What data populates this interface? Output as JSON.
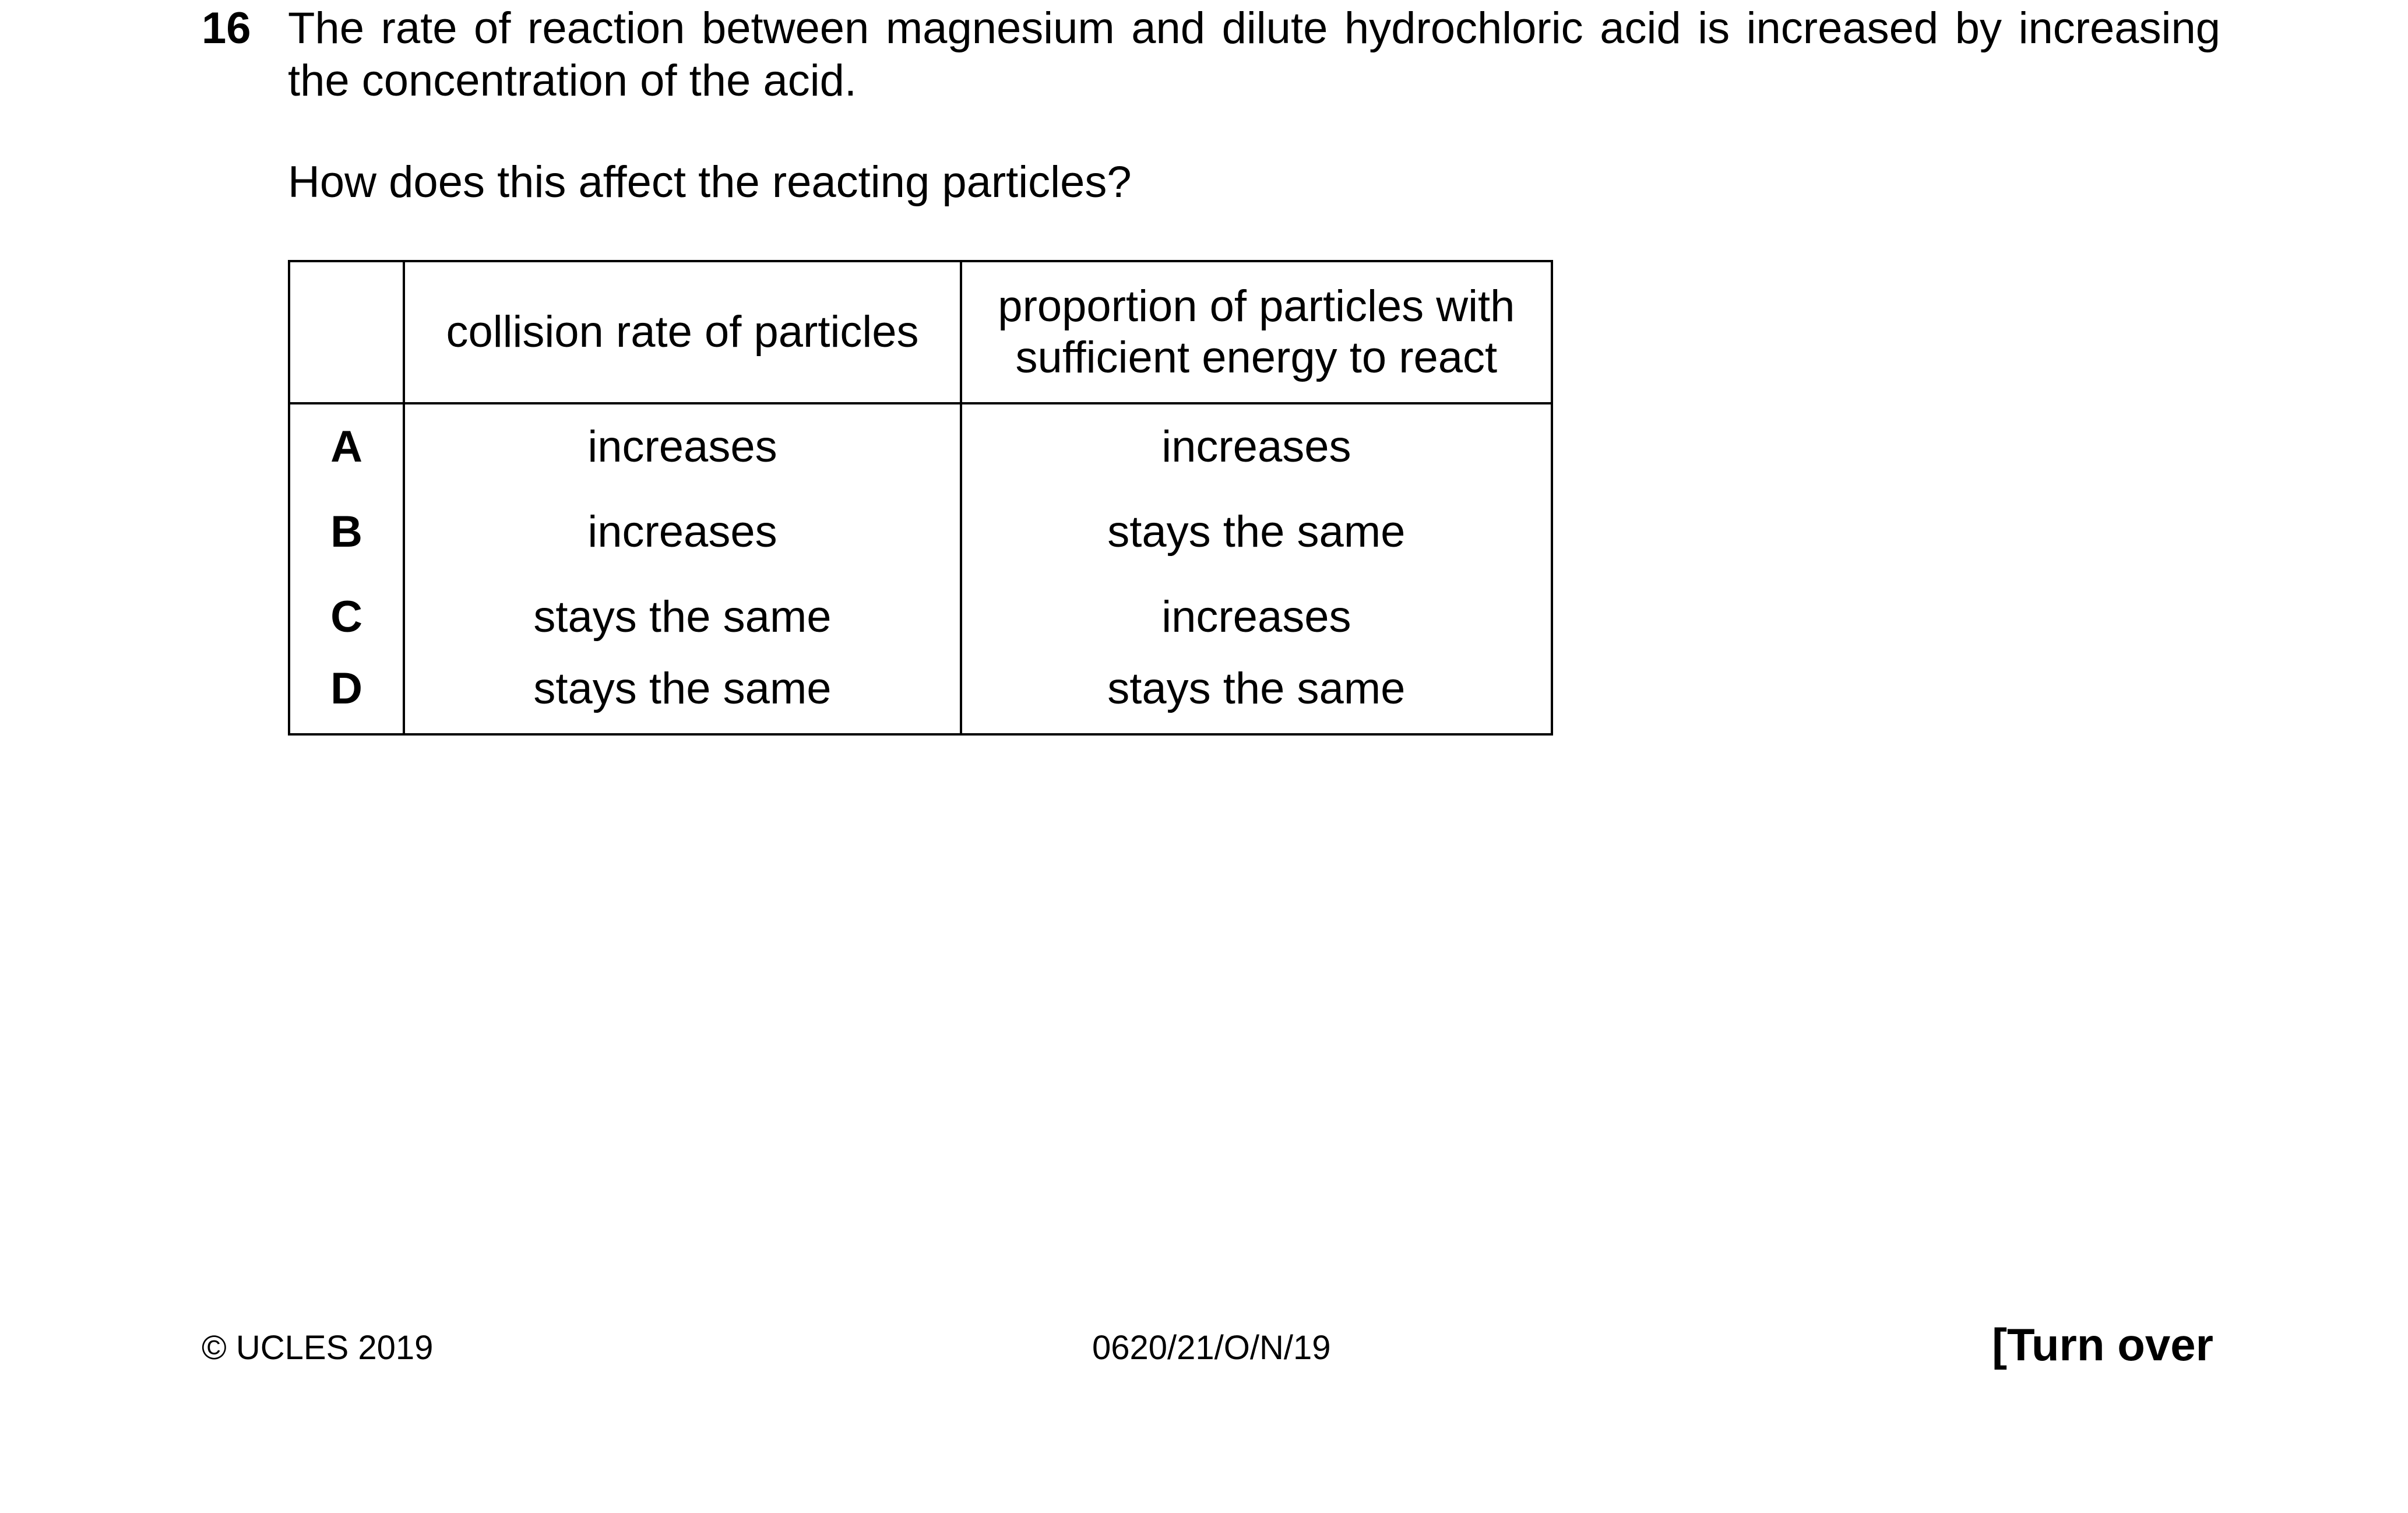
{
  "question": {
    "number": "16",
    "stem": "The rate of reaction between magnesium and dilute hydrochloric acid is increased by increasing the concentration of the acid.",
    "prompt": "How does this affect the reacting particles?"
  },
  "table": {
    "headers": [
      "",
      "collision rate of particles",
      "proportion of particles with sufficient energy to react"
    ],
    "rows": [
      {
        "letter": "A",
        "collision_rate": "increases",
        "proportion": "increases"
      },
      {
        "letter": "B",
        "collision_rate": "increases",
        "proportion": "stays the same"
      },
      {
        "letter": "C",
        "collision_rate": "stays the same",
        "proportion": "increases"
      },
      {
        "letter": "D",
        "collision_rate": "stays the same",
        "proportion": "stays the same"
      }
    ]
  },
  "footer": {
    "copyright": "© UCLES 2019",
    "paper_code": "0620/21/O/N/19",
    "turn_over": "[Turn over"
  }
}
